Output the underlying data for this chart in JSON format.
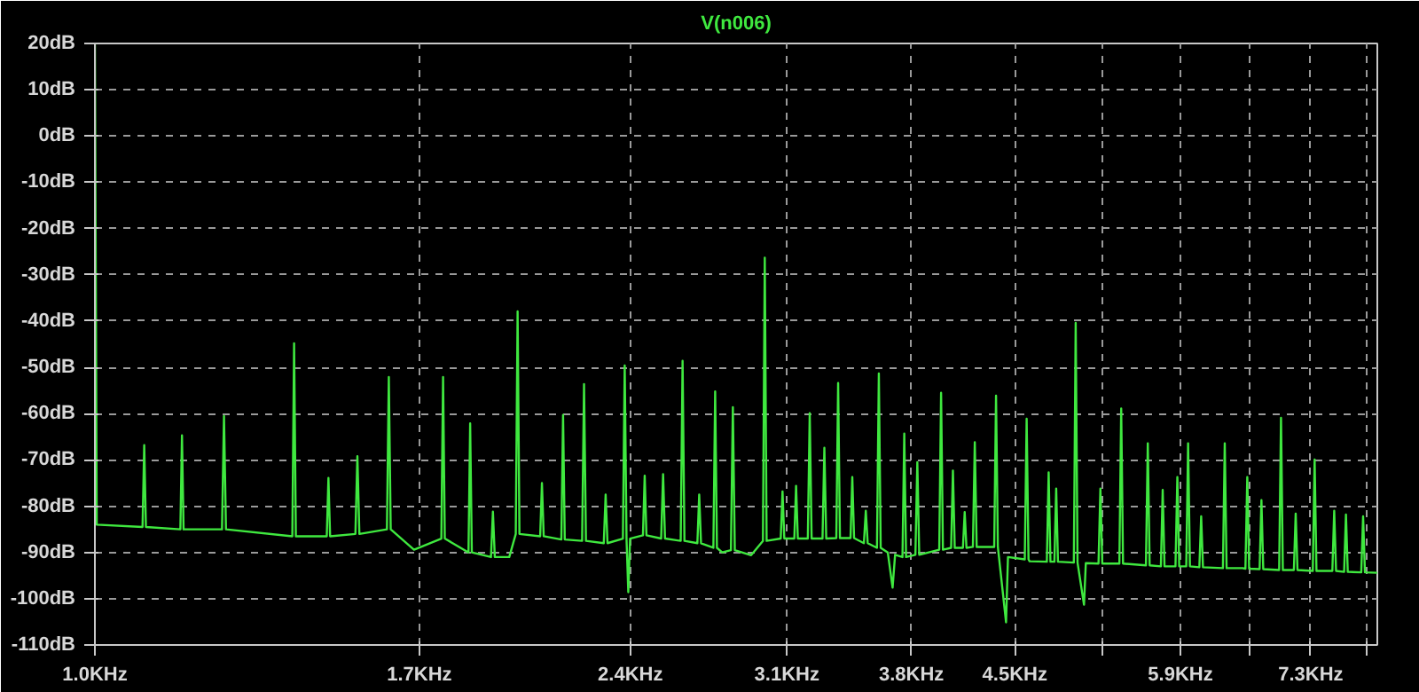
{
  "chart_data": {
    "type": "line",
    "title": "V(n006)",
    "color": "#3fe83f",
    "log": "x",
    "grid": true,
    "line_style": "solid",
    "xlim": [
      1.0,
      8.14
    ],
    "ylim": [
      -110,
      20
    ],
    "xticks": [
      {
        "value": 1.0,
        "label": "1.0KHz"
      },
      {
        "value": 1.7,
        "label": "1.7KHz"
      },
      {
        "value": 2.4,
        "label": "2.4KHz"
      },
      {
        "value": 3.1,
        "label": "3.1KHz"
      },
      {
        "value": 3.8,
        "label": "3.8KHz"
      },
      {
        "value": 4.5,
        "label": "4.5KHz"
      },
      {
        "value": 5.2,
        "label": null
      },
      {
        "value": 5.9,
        "label": "5.9KHz"
      },
      {
        "value": 6.6,
        "label": null
      },
      {
        "value": 7.3,
        "label": "7.3KHz"
      },
      {
        "value": 8.0,
        "label": null
      }
    ],
    "yticks": [
      {
        "value": 20,
        "label": "20dB"
      },
      {
        "value": 10,
        "label": "10dB"
      },
      {
        "value": 0,
        "label": "0dB"
      },
      {
        "value": -10,
        "label": "-10dB"
      },
      {
        "value": -20,
        "label": "-20dB"
      },
      {
        "value": -30,
        "label": "-30dB"
      },
      {
        "value": -40,
        "label": "-40dB"
      },
      {
        "value": -50,
        "label": "-50dB"
      },
      {
        "value": -60,
        "label": "-60dB"
      },
      {
        "value": -70,
        "label": "-70dB"
      },
      {
        "value": -80,
        "label": "-80dB"
      },
      {
        "value": -90,
        "label": "-90dB"
      },
      {
        "value": -100,
        "label": "-100dB"
      },
      {
        "value": -110,
        "label": "-110dB"
      }
    ],
    "x": [
      1.0,
      1.003,
      1.081,
      1.084,
      1.087,
      1.15,
      1.153,
      1.156,
      1.231,
      1.235,
      1.239,
      1.381,
      1.385,
      1.389,
      1.461,
      1.465,
      1.469,
      1.531,
      1.536,
      1.541,
      1.612,
      1.617,
      1.622,
      1.685,
      1.762,
      1.767,
      1.772,
      1.842,
      1.847,
      1.852,
      1.911,
      1.917,
      1.923,
      1.969,
      1.99,
      1.996,
      2.002,
      2.071,
      2.077,
      2.083,
      2.144,
      2.15,
      2.156,
      2.218,
      2.225,
      2.232,
      2.298,
      2.305,
      2.312,
      2.371,
      2.378,
      2.385,
      2.392,
      2.399,
      2.45,
      2.457,
      2.464,
      2.524,
      2.532,
      2.54,
      2.606,
      2.614,
      2.622,
      2.678,
      2.686,
      2.694,
      2.749,
      2.757,
      2.765,
      2.789,
      2.829,
      2.838,
      2.847,
      2.924,
      2.981,
      2.99,
      2.999,
      3.069,
      3.078,
      3.087,
      3.138,
      3.147,
      3.156,
      3.208,
      3.218,
      3.228,
      3.286,
      3.296,
      3.306,
      3.361,
      3.371,
      3.381,
      3.44,
      3.45,
      3.46,
      3.516,
      3.527,
      3.538,
      3.592,
      3.603,
      3.614,
      3.656,
      3.685,
      3.7,
      3.745,
      3.756,
      3.767,
      3.825,
      3.837,
      3.849,
      3.977,
      3.989,
      4.001,
      4.055,
      4.067,
      4.079,
      4.134,
      4.146,
      4.158,
      4.202,
      4.215,
      4.228,
      4.351,
      4.364,
      4.377,
      4.436,
      4.45,
      4.574,
      4.588,
      4.602,
      4.61,
      4.742,
      4.756,
      4.77,
      4.801,
      4.815,
      4.829,
      4.956,
      4.971,
      4.986,
      5.039,
      5.054,
      5.16,
      5.176,
      5.192,
      5.339,
      5.355,
      5.371,
      5.576,
      5.593,
      5.61,
      5.714,
      5.731,
      5.748,
      5.852,
      5.87,
      5.888,
      5.956,
      5.974,
      5.992,
      6.085,
      6.103,
      6.121,
      6.324,
      6.343,
      6.362,
      6.53,
      6.561,
      6.581,
      6.601,
      6.715,
      6.735,
      6.755,
      6.933,
      6.954,
      6.975,
      7.102,
      7.123,
      7.144,
      7.325,
      7.347,
      7.369,
      7.563,
      7.586,
      7.609,
      7.71,
      7.733,
      7.756,
      7.929,
      7.953,
      7.977,
      8.14
    ],
    "values": [
      20,
      -84,
      -84.5,
      -66.8,
      -84.5,
      -85,
      -64.7,
      -85,
      -85,
      -60.5,
      -85,
      -86.5,
      -44.8,
      -86.5,
      -86.5,
      -73.9,
      -86.5,
      -86,
      -69.2,
      -86,
      -85,
      -52.1,
      -85,
      -89.4,
      -87,
      -52.1,
      -87,
      -90,
      -62.1,
      -90,
      -91,
      -81.2,
      -91,
      -91,
      -86,
      -37.9,
      -86,
      -86.5,
      -75,
      -86.5,
      -87.2,
      -60.3,
      -87.2,
      -87.5,
      -53.6,
      -87.5,
      -88,
      -77.5,
      -88,
      -87,
      -49.6,
      -87,
      -98.6,
      -87,
      -86.3,
      -73.4,
      -86.3,
      -87,
      -73.1,
      -87,
      -87.5,
      -48.6,
      -87.5,
      -88,
      -77.5,
      -88,
      -89,
      -55.2,
      -89,
      -90,
      -89.5,
      -58.6,
      -89.5,
      -90.6,
      -87.5,
      -26.3,
      -87.5,
      -87,
      -76.8,
      -87,
      -87,
      -75.6,
      -87,
      -87,
      -59.9,
      -87,
      -87,
      -67.4,
      -87,
      -86.9,
      -53.4,
      -86.9,
      -86.9,
      -73.7,
      -86.9,
      -88,
      -81,
      -88,
      -89,
      -51.3,
      -89,
      -90,
      -97.6,
      -90.5,
      -91,
      -64.3,
      -91,
      -90.5,
      -70.5,
      -90.5,
      -89.4,
      -55.5,
      -89.4,
      -89,
      -72.3,
      -89,
      -89,
      -81.3,
      -89,
      -88.8,
      -66.2,
      -88.8,
      -88.8,
      -56.1,
      -88.8,
      -105.1,
      -91,
      -91.5,
      -61.1,
      -91.5,
      -91.9,
      -92,
      -72.7,
      -92,
      -92,
      -76.2,
      -92,
      -92.2,
      -40.4,
      -92.2,
      -101.3,
      -92.3,
      -92.4,
      -76.2,
      -92.4,
      -92.4,
      -58.9,
      -92.4,
      -92.8,
      -66.4,
      -92.8,
      -93,
      -76.5,
      -93,
      -93,
      -73.7,
      -93,
      -93,
      -66.4,
      -93,
      -93.2,
      -82.2,
      -93.2,
      -93.4,
      -66.4,
      -93.4,
      -93.4,
      -93.5,
      -73.7,
      -93.5,
      -93.6,
      -78.7,
      -93.6,
      -93.8,
      -60.9,
      -93.8,
      -93.8,
      -81.6,
      -93.8,
      -94,
      -69.9,
      -94,
      -94,
      -81,
      -94,
      -94.2,
      -81.8,
      -94.2,
      -94.3,
      -82.2,
      -94.3,
      -94.4
    ]
  }
}
